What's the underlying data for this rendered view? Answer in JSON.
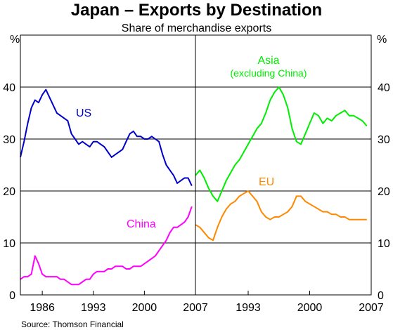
{
  "title": "Japan – Exports by Destination",
  "subtitle": "Share of merchandise exports",
  "source": "Source: Thomson Financial",
  "chart_data": [
    {
      "type": "line",
      "panel": "left",
      "ylabel": "%",
      "ylim": [
        0,
        50
      ],
      "yticks": [
        0,
        10,
        20,
        30,
        40
      ],
      "xlim": [
        1983,
        2007
      ],
      "xticks": [
        1986,
        1993,
        2000,
        2007
      ],
      "grid": true,
      "series": [
        {
          "name": "US",
          "color": "#0000cc",
          "x": [
            1983,
            1983.5,
            1984,
            1984.5,
            1985,
            1985.5,
            1986,
            1986.5,
            1987,
            1987.5,
            1988,
            1988.5,
            1989,
            1989.5,
            1990,
            1990.5,
            1991,
            1991.5,
            1992,
            1992.5,
            1993,
            1993.5,
            1994,
            1994.5,
            1995,
            1995.5,
            1996,
            1996.5,
            1997,
            1997.5,
            1998,
            1998.5,
            1999,
            1999.5,
            2000,
            2000.5,
            2001,
            2001.5,
            2002,
            2002.5,
            2003,
            2003.5,
            2004,
            2004.5,
            2005,
            2005.5,
            2006,
            2006.5
          ],
          "y": [
            26.5,
            29.5,
            33,
            36,
            37.5,
            37,
            38.5,
            39.5,
            38,
            36.5,
            35,
            34.5,
            34,
            33.5,
            31,
            30,
            29,
            29.5,
            29,
            28.5,
            29.5,
            29.5,
            29,
            28.5,
            27.5,
            26.5,
            27,
            27.5,
            28,
            29.5,
            31,
            31.5,
            30.5,
            30.5,
            30,
            30,
            30.5,
            30,
            29.5,
            27,
            25,
            24,
            23,
            21.5,
            22,
            22.5,
            22.5,
            21
          ]
        },
        {
          "name": "China",
          "color": "#ff00ff",
          "x": [
            1983,
            1983.5,
            1984,
            1984.5,
            1985,
            1985.5,
            1986,
            1986.5,
            1987,
            1987.5,
            1988,
            1988.5,
            1989,
            1989.5,
            1990,
            1990.5,
            1991,
            1991.5,
            1992,
            1992.5,
            1993,
            1993.5,
            1994,
            1994.5,
            1995,
            1995.5,
            1996,
            1996.5,
            1997,
            1997.5,
            1998,
            1998.5,
            1999,
            1999.5,
            2000,
            2000.5,
            2001,
            2001.5,
            2002,
            2002.5,
            2003,
            2003.5,
            2004,
            2004.5,
            2005,
            2005.5,
            2006,
            2006.5
          ],
          "y": [
            3,
            3.5,
            3.5,
            4,
            7.5,
            6,
            4,
            3.5,
            3.5,
            3.5,
            3.5,
            3,
            3,
            2.5,
            2,
            2,
            2,
            2.5,
            3,
            3,
            4,
            4.5,
            4.5,
            4.5,
            5,
            5,
            5.5,
            5.5,
            5.5,
            5,
            5,
            5.5,
            5.5,
            5.5,
            6,
            6.5,
            7,
            7.5,
            8.5,
            9.5,
            10.5,
            12,
            13,
            13,
            13.5,
            14,
            15,
            17
          ]
        }
      ],
      "annotations": [
        "US",
        "China"
      ]
    },
    {
      "type": "line",
      "panel": "right",
      "ylabel": "%",
      "ylim": [
        0,
        50
      ],
      "yticks": [
        0,
        10,
        20,
        30,
        40
      ],
      "xlim": [
        1987,
        2007
      ],
      "xticks": [
        1993,
        2000,
        2007
      ],
      "grid": true,
      "series": [
        {
          "name": "Asia (excluding China)",
          "color": "#00ee00",
          "x": [
            1987,
            1987.5,
            1988,
            1988.5,
            1989,
            1989.5,
            1990,
            1990.5,
            1991,
            1991.5,
            1992,
            1992.5,
            1993,
            1993.5,
            1994,
            1994.5,
            1995,
            1995.5,
            1996,
            1996.5,
            1997,
            1997.5,
            1998,
            1998.5,
            1999,
            1999.5,
            2000,
            2000.5,
            2001,
            2001.5,
            2002,
            2002.5,
            2003,
            2003.5,
            2004,
            2004.5,
            2005,
            2005.5,
            2006,
            2006.5
          ],
          "y": [
            23,
            24,
            22.5,
            20.5,
            19,
            18,
            20,
            22,
            23.5,
            25,
            26,
            27.5,
            29,
            30.5,
            32,
            33,
            35,
            37.5,
            39,
            40,
            38.5,
            36,
            32,
            29.5,
            29,
            31,
            33,
            35,
            34.5,
            33,
            34,
            33.5,
            34.5,
            35,
            35.5,
            34.5,
            34.5,
            34,
            33.5,
            32.5
          ]
        },
        {
          "name": "EU",
          "color": "#ff8800",
          "x": [
            1987,
            1987.5,
            1988,
            1988.5,
            1989,
            1989.5,
            1990,
            1990.5,
            1991,
            1991.5,
            1992,
            1992.5,
            1993,
            1993.5,
            1994,
            1994.5,
            1995,
            1995.5,
            1996,
            1996.5,
            1997,
            1997.5,
            1998,
            1998.5,
            1999,
            1999.5,
            2000,
            2000.5,
            2001,
            2001.5,
            2002,
            2002.5,
            2003,
            2003.5,
            2004,
            2004.5,
            2005,
            2005.5,
            2006,
            2006.5
          ],
          "y": [
            13.5,
            13,
            12,
            11,
            10.5,
            13,
            15,
            16.5,
            17.5,
            18,
            19,
            19.5,
            20,
            19,
            18,
            16,
            15,
            14.5,
            15,
            15,
            15.5,
            16,
            17,
            19,
            19,
            18,
            17.5,
            17,
            16.5,
            16,
            16,
            15.5,
            15.5,
            15,
            15,
            14.5,
            14.5,
            14.5,
            14.5,
            14.5
          ]
        }
      ],
      "annotations": [
        "Asia",
        "(excluding China)",
        "EU"
      ]
    }
  ],
  "labels": {
    "left_unit": "%",
    "right_unit": "%",
    "us": "US",
    "china": "China",
    "asia": "Asia",
    "asia_sub": "(excluding China)",
    "eu": "EU"
  }
}
